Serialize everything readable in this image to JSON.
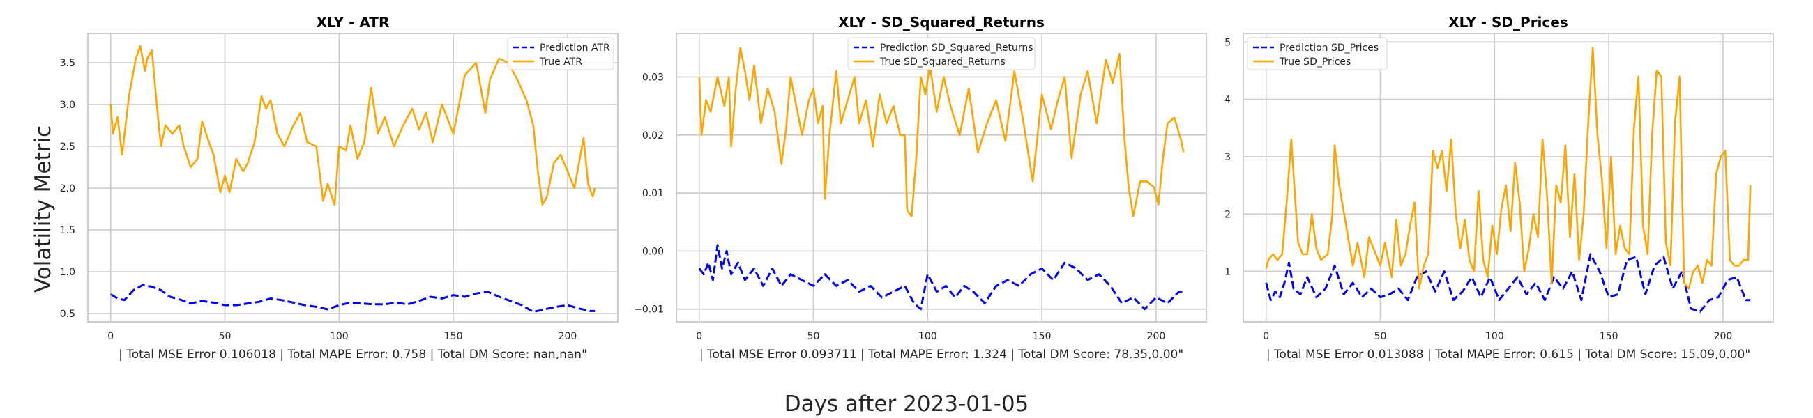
{
  "figure": {
    "ylabel": "Volatility Metric",
    "xlabel": "Days after 2023-01-05"
  },
  "chart_data": [
    {
      "type": "line",
      "title": "XLY - ATR",
      "xlabel": "| Total MSE Error 0.106018 | Total MAPE Error: 0.758 | Total DM Score: nan,nan\"",
      "xlim": [
        -10,
        222
      ],
      "ylim": [
        0.4,
        3.85
      ],
      "xticks": [
        0,
        50,
        100,
        150,
        200
      ],
      "yticks": [
        0.5,
        1.0,
        1.5,
        2.0,
        2.5,
        3.0,
        3.5
      ],
      "ytick_labels": [
        "0.5",
        "1.0",
        "1.5",
        "2.0",
        "2.5",
        "3.0",
        "3.5"
      ],
      "grid": true,
      "legend_position": "upper right",
      "series": [
        {
          "name": "Prediction ATR",
          "color": "#0000ff",
          "dash": true,
          "x": [
            0,
            3,
            6,
            10,
            14,
            18,
            22,
            26,
            30,
            35,
            40,
            45,
            50,
            55,
            60,
            65,
            70,
            75,
            80,
            85,
            90,
            95,
            100,
            105,
            110,
            115,
            120,
            125,
            130,
            135,
            140,
            145,
            150,
            155,
            160,
            165,
            170,
            175,
            180,
            185,
            190,
            195,
            200,
            205,
            210,
            212
          ],
          "values": [
            0.73,
            0.68,
            0.66,
            0.78,
            0.84,
            0.82,
            0.78,
            0.7,
            0.67,
            0.62,
            0.65,
            0.63,
            0.6,
            0.6,
            0.62,
            0.64,
            0.68,
            0.66,
            0.63,
            0.6,
            0.58,
            0.55,
            0.6,
            0.63,
            0.62,
            0.61,
            0.61,
            0.63,
            0.61,
            0.65,
            0.7,
            0.68,
            0.72,
            0.7,
            0.74,
            0.76,
            0.7,
            0.65,
            0.6,
            0.52,
            0.55,
            0.58,
            0.6,
            0.56,
            0.53,
            0.53
          ]
        },
        {
          "name": "True ATR",
          "color": "#ffa500",
          "dash": false,
          "x": [
            0,
            1,
            3,
            5,
            8,
            11,
            13,
            15,
            16,
            18,
            20,
            22,
            24,
            27,
            30,
            32,
            35,
            38,
            40,
            43,
            45,
            48,
            50,
            52,
            55,
            58,
            60,
            63,
            66,
            68,
            70,
            73,
            76,
            80,
            83,
            86,
            90,
            93,
            95,
            98,
            100,
            103,
            105,
            108,
            111,
            114,
            117,
            120,
            124,
            128,
            132,
            135,
            138,
            141,
            145,
            150,
            155,
            160,
            164,
            166,
            170,
            174,
            178,
            182,
            185,
            187,
            189,
            191,
            194,
            197,
            200,
            203,
            205,
            207,
            209,
            211,
            212
          ],
          "values": [
            3.0,
            2.65,
            2.85,
            2.4,
            3.1,
            3.55,
            3.7,
            3.4,
            3.55,
            3.65,
            3.05,
            2.5,
            2.75,
            2.65,
            2.75,
            2.5,
            2.25,
            2.35,
            2.8,
            2.55,
            2.4,
            1.95,
            2.15,
            1.95,
            2.35,
            2.2,
            2.3,
            2.55,
            3.1,
            2.95,
            3.05,
            2.65,
            2.5,
            2.75,
            2.9,
            2.55,
            2.5,
            1.85,
            2.05,
            1.8,
            2.5,
            2.45,
            2.75,
            2.35,
            2.55,
            3.2,
            2.65,
            2.85,
            2.5,
            2.75,
            2.95,
            2.7,
            2.9,
            2.55,
            3.0,
            2.65,
            3.35,
            3.5,
            2.9,
            3.3,
            3.55,
            3.5,
            3.3,
            3.05,
            2.75,
            2.2,
            1.8,
            1.9,
            2.3,
            2.4,
            2.2,
            2.0,
            2.3,
            2.6,
            2.05,
            1.9,
            2.0
          ]
        }
      ]
    },
    {
      "type": "line",
      "title": "XLY - SD_Squared_Returns",
      "xlabel": "| Total MSE Error 0.093711 | Total MAPE Error: 1.324 | Total DM Score: 78.35,0.00\"",
      "xlim": [
        -10,
        222
      ],
      "ylim": [
        -0.0122,
        0.0375
      ],
      "xticks": [
        0,
        50,
        100,
        150,
        200
      ],
      "yticks": [
        -0.01,
        0.0,
        0.01,
        0.02,
        0.03
      ],
      "ytick_labels": [
        "−0.01",
        "0.00",
        "0.01",
        "0.02",
        "0.03"
      ],
      "grid": true,
      "legend_position": "upper center",
      "series": [
        {
          "name": "Prediction SD_Squared_Returns",
          "color": "#0000ff",
          "dash": true,
          "x": [
            0,
            2,
            4,
            6,
            8,
            10,
            12,
            14,
            17,
            20,
            24,
            28,
            32,
            36,
            40,
            45,
            50,
            55,
            60,
            65,
            70,
            75,
            80,
            85,
            90,
            94,
            97,
            100,
            104,
            108,
            112,
            116,
            120,
            125,
            130,
            135,
            140,
            145,
            150,
            155,
            160,
            165,
            170,
            175,
            180,
            185,
            190,
            195,
            200,
            205,
            210,
            212
          ],
          "values": [
            -0.003,
            -0.004,
            -0.002,
            -0.005,
            0.001,
            -0.003,
            0.0,
            -0.004,
            -0.002,
            -0.005,
            -0.003,
            -0.006,
            -0.003,
            -0.006,
            -0.004,
            -0.005,
            -0.006,
            -0.004,
            -0.006,
            -0.005,
            -0.007,
            -0.006,
            -0.008,
            -0.007,
            -0.006,
            -0.009,
            -0.01,
            -0.004,
            -0.007,
            -0.006,
            -0.008,
            -0.006,
            -0.007,
            -0.009,
            -0.006,
            -0.005,
            -0.006,
            -0.004,
            -0.003,
            -0.005,
            -0.002,
            -0.003,
            -0.005,
            -0.004,
            -0.006,
            -0.009,
            -0.008,
            -0.01,
            -0.008,
            -0.009,
            -0.007,
            -0.007
          ]
        },
        {
          "name": "True SD_Squared_Returns",
          "color": "#ffa500",
          "dash": false,
          "x": [
            0,
            1,
            3,
            5,
            8,
            11,
            13,
            14,
            16,
            18,
            20,
            22,
            24,
            27,
            30,
            33,
            36,
            38,
            40,
            43,
            45,
            48,
            50,
            52,
            54,
            55,
            57,
            60,
            62,
            65,
            68,
            70,
            73,
            76,
            79,
            82,
            85,
            88,
            90,
            91,
            93,
            95,
            97,
            99,
            101,
            104,
            107,
            110,
            114,
            118,
            122,
            126,
            130,
            134,
            138,
            142,
            146,
            150,
            154,
            157,
            160,
            163,
            167,
            170,
            174,
            178,
            181,
            184,
            186,
            188,
            190,
            193,
            196,
            199,
            201,
            203,
            205,
            208,
            211,
            212
          ],
          "values": [
            0.03,
            0.02,
            0.026,
            0.024,
            0.03,
            0.025,
            0.03,
            0.018,
            0.028,
            0.035,
            0.031,
            0.026,
            0.032,
            0.022,
            0.028,
            0.024,
            0.015,
            0.021,
            0.03,
            0.024,
            0.02,
            0.026,
            0.028,
            0.022,
            0.025,
            0.009,
            0.02,
            0.031,
            0.022,
            0.026,
            0.03,
            0.022,
            0.026,
            0.018,
            0.027,
            0.022,
            0.025,
            0.02,
            0.02,
            0.007,
            0.006,
            0.016,
            0.03,
            0.027,
            0.032,
            0.024,
            0.03,
            0.025,
            0.02,
            0.028,
            0.017,
            0.022,
            0.026,
            0.019,
            0.031,
            0.022,
            0.012,
            0.027,
            0.021,
            0.026,
            0.03,
            0.016,
            0.027,
            0.031,
            0.022,
            0.033,
            0.029,
            0.034,
            0.02,
            0.011,
            0.006,
            0.012,
            0.012,
            0.011,
            0.008,
            0.016,
            0.022,
            0.023,
            0.019,
            0.017
          ]
        }
      ]
    },
    {
      "type": "line",
      "title": "XLY - SD_Prices",
      "xlabel": "| Total MSE Error 0.013088 | Total MAPE Error: 0.615 | Total DM Score: 15.09,0.00\"",
      "xlim": [
        -10,
        222
      ],
      "ylim": [
        0.12,
        5.15
      ],
      "xticks": [
        0,
        50,
        100,
        150,
        200
      ],
      "yticks": [
        1,
        2,
        3,
        4,
        5
      ],
      "ytick_labels": [
        "1",
        "2",
        "3",
        "4",
        "5"
      ],
      "grid": true,
      "legend_position": "upper left",
      "series": [
        {
          "name": "Prediction SD_Prices",
          "color": "#0000ff",
          "dash": true,
          "x": [
            0,
            2,
            4,
            6,
            8,
            10,
            12,
            15,
            18,
            22,
            26,
            30,
            34,
            38,
            42,
            46,
            50,
            54,
            58,
            62,
            66,
            70,
            74,
            78,
            82,
            86,
            90,
            94,
            98,
            102,
            106,
            110,
            114,
            118,
            122,
            126,
            130,
            134,
            138,
            142,
            146,
            150,
            154,
            158,
            162,
            166,
            170,
            174,
            178,
            182,
            186,
            190,
            194,
            198,
            202,
            206,
            210,
            212
          ],
          "values": [
            0.8,
            0.5,
            0.65,
            0.55,
            0.8,
            1.15,
            0.7,
            0.6,
            0.9,
            0.55,
            0.7,
            1.1,
            0.6,
            0.8,
            0.55,
            0.7,
            0.55,
            0.6,
            0.7,
            0.5,
            0.9,
            1.0,
            0.65,
            1.0,
            0.5,
            0.65,
            0.9,
            0.55,
            0.9,
            0.5,
            0.7,
            0.9,
            0.6,
            0.8,
            0.5,
            0.9,
            0.7,
            1.0,
            0.5,
            1.3,
            1.0,
            0.55,
            0.6,
            1.2,
            1.25,
            0.6,
            1.1,
            1.25,
            0.7,
            1.0,
            0.35,
            0.3,
            0.5,
            0.55,
            0.85,
            0.9,
            0.5,
            0.5
          ]
        },
        {
          "name": "True SD_Prices",
          "color": "#ffa500",
          "dash": false,
          "x": [
            0,
            1,
            3,
            5,
            7,
            9,
            11,
            13,
            14,
            16,
            18,
            20,
            22,
            24,
            27,
            29,
            30,
            32,
            35,
            38,
            40,
            43,
            45,
            48,
            50,
            52,
            55,
            57,
            59,
            61,
            63,
            65,
            67,
            69,
            71,
            73,
            75,
            77,
            79,
            81,
            83,
            85,
            87,
            89,
            91,
            93,
            95,
            97,
            99,
            101,
            103,
            105,
            107,
            109,
            111,
            113,
            115,
            117,
            119,
            121,
            123,
            125,
            127,
            129,
            131,
            133,
            135,
            137,
            139,
            141,
            143,
            145,
            147,
            149,
            151,
            153,
            155,
            157,
            159,
            161,
            163,
            165,
            167,
            169,
            171,
            173,
            175,
            177,
            179,
            181,
            183,
            185,
            187,
            189,
            191,
            193,
            195,
            197,
            199,
            201,
            203,
            205,
            207,
            209,
            211,
            212
          ],
          "values": [
            1.05,
            1.2,
            1.3,
            1.2,
            1.3,
            2.2,
            3.3,
            2.1,
            1.5,
            1.3,
            1.3,
            2.0,
            1.4,
            1.2,
            1.3,
            2.0,
            3.2,
            2.5,
            1.8,
            1.1,
            1.5,
            0.9,
            1.6,
            1.3,
            1.1,
            1.5,
            0.9,
            1.9,
            1.1,
            1.3,
            1.8,
            2.2,
            0.7,
            1.1,
            1.3,
            3.1,
            2.8,
            3.1,
            2.4,
            3.3,
            2.0,
            1.4,
            1.9,
            1.2,
            1.0,
            2.4,
            1.2,
            0.9,
            1.8,
            1.3,
            2.1,
            2.5,
            1.7,
            2.9,
            2.2,
            1.0,
            1.4,
            2.0,
            1.6,
            3.3,
            2.3,
            0.8,
            2.5,
            2.2,
            3.2,
            1.6,
            2.7,
            1.2,
            2.0,
            3.6,
            4.9,
            3.4,
            2.6,
            1.4,
            3.0,
            1.3,
            1.8,
            1.4,
            1.3,
            3.5,
            4.4,
            1.8,
            1.3,
            3.4,
            4.5,
            4.4,
            1.5,
            1.1,
            3.6,
            4.4,
            0.8,
            0.7,
            1.0,
            1.1,
            0.8,
            1.2,
            1.1,
            2.7,
            3.0,
            3.1,
            1.2,
            1.1,
            1.1,
            1.2,
            1.2,
            2.5
          ]
        }
      ]
    }
  ]
}
